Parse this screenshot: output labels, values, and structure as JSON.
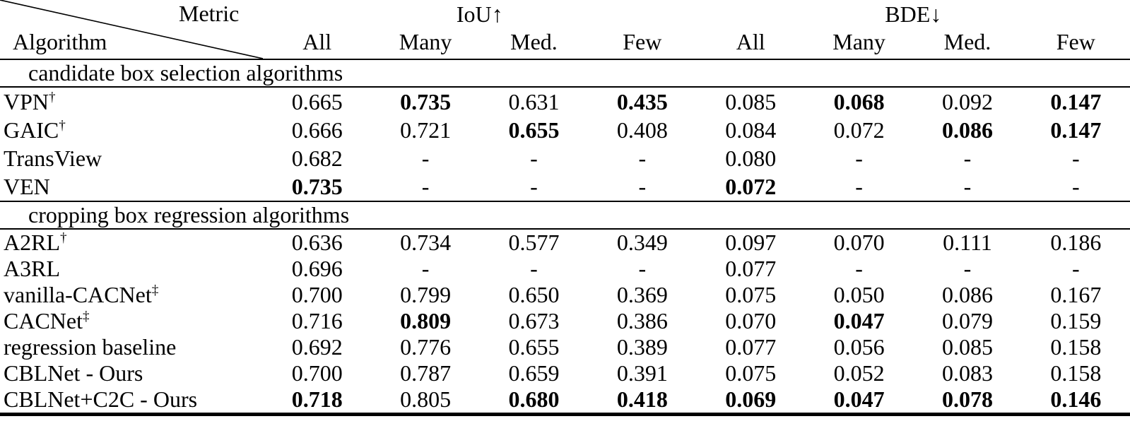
{
  "page": {
    "background": "#ffffff",
    "text_color": "#000000",
    "rule_color": "#000000"
  },
  "table": {
    "header": {
      "corner_top": "Metric",
      "corner_bottom": "Algorithm",
      "groups": [
        "IoU↑",
        "BDE↓"
      ],
      "subcolumns": [
        "All",
        "Many",
        "Med.",
        "Few",
        "All",
        "Many",
        "Med.",
        "Few"
      ]
    },
    "sections": [
      {
        "title": "candidate box selection algorithms",
        "rows": [
          {
            "name": "VPN",
            "sup": "†",
            "cells": [
              {
                "v": "0.665",
                "b": false
              },
              {
                "v": "0.735",
                "b": true
              },
              {
                "v": "0.631",
                "b": false
              },
              {
                "v": "0.435",
                "b": true
              },
              {
                "v": "0.085",
                "b": false
              },
              {
                "v": "0.068",
                "b": true
              },
              {
                "v": "0.092",
                "b": false
              },
              {
                "v": "0.147",
                "b": true
              }
            ]
          },
          {
            "name": "GAIC",
            "sup": "†",
            "cells": [
              {
                "v": "0.666",
                "b": false
              },
              {
                "v": "0.721",
                "b": false
              },
              {
                "v": "0.655",
                "b": true
              },
              {
                "v": "0.408",
                "b": false
              },
              {
                "v": "0.084",
                "b": false
              },
              {
                "v": "0.072",
                "b": false
              },
              {
                "v": "0.086",
                "b": true
              },
              {
                "v": "0.147",
                "b": true
              }
            ]
          },
          {
            "name": "TransView",
            "sup": "",
            "cells": [
              {
                "v": "0.682",
                "b": false
              },
              {
                "v": "-",
                "b": false
              },
              {
                "v": "-",
                "b": false
              },
              {
                "v": "-",
                "b": false
              },
              {
                "v": "0.080",
                "b": false
              },
              {
                "v": "-",
                "b": false
              },
              {
                "v": "-",
                "b": false
              },
              {
                "v": "-",
                "b": false
              }
            ]
          },
          {
            "name": "VEN",
            "sup": "",
            "cells": [
              {
                "v": "0.735",
                "b": true
              },
              {
                "v": "-",
                "b": false
              },
              {
                "v": "-",
                "b": false
              },
              {
                "v": "-",
                "b": false
              },
              {
                "v": "0.072",
                "b": true
              },
              {
                "v": "-",
                "b": false
              },
              {
                "v": "-",
                "b": false
              },
              {
                "v": "-",
                "b": false
              }
            ]
          }
        ]
      },
      {
        "title": "cropping box regression algorithms",
        "rows": [
          {
            "name": "A2RL",
            "sup": "†",
            "cells": [
              {
                "v": "0.636",
                "b": false
              },
              {
                "v": "0.734",
                "b": false
              },
              {
                "v": "0.577",
                "b": false
              },
              {
                "v": "0.349",
                "b": false
              },
              {
                "v": "0.097",
                "b": false
              },
              {
                "v": "0.070",
                "b": false
              },
              {
                "v": "0.111",
                "b": false
              },
              {
                "v": "0.186",
                "b": false
              }
            ]
          },
          {
            "name": "A3RL",
            "sup": "",
            "cells": [
              {
                "v": "0.696",
                "b": false
              },
              {
                "v": "-",
                "b": false
              },
              {
                "v": "-",
                "b": false
              },
              {
                "v": "-",
                "b": false
              },
              {
                "v": "0.077",
                "b": false
              },
              {
                "v": "-",
                "b": false
              },
              {
                "v": "-",
                "b": false
              },
              {
                "v": "-",
                "b": false
              }
            ]
          },
          {
            "name": "vanilla-CACNet",
            "sup": "‡",
            "cells": [
              {
                "v": "0.700",
                "b": false
              },
              {
                "v": "0.799",
                "b": false
              },
              {
                "v": "0.650",
                "b": false
              },
              {
                "v": "0.369",
                "b": false
              },
              {
                "v": "0.075",
                "b": false
              },
              {
                "v": "0.050",
                "b": false
              },
              {
                "v": "0.086",
                "b": false
              },
              {
                "v": "0.167",
                "b": false
              }
            ]
          },
          {
            "name": "CACNet",
            "sup": "‡",
            "cells": [
              {
                "v": "0.716",
                "b": false
              },
              {
                "v": "0.809",
                "b": true
              },
              {
                "v": "0.673",
                "b": false
              },
              {
                "v": "0.386",
                "b": false
              },
              {
                "v": "0.070",
                "b": false
              },
              {
                "v": "0.047",
                "b": true
              },
              {
                "v": "0.079",
                "b": false
              },
              {
                "v": "0.159",
                "b": false
              }
            ]
          },
          {
            "name": "regression baseline",
            "sup": "",
            "cells": [
              {
                "v": "0.692",
                "b": false
              },
              {
                "v": "0.776",
                "b": false
              },
              {
                "v": "0.655",
                "b": false
              },
              {
                "v": "0.389",
                "b": false
              },
              {
                "v": "0.077",
                "b": false
              },
              {
                "v": "0.056",
                "b": false
              },
              {
                "v": "0.085",
                "b": false
              },
              {
                "v": "0.158",
                "b": false
              }
            ]
          },
          {
            "name": "CBLNet - Ours",
            "sup": "",
            "cells": [
              {
                "v": "0.700",
                "b": false
              },
              {
                "v": "0.787",
                "b": false
              },
              {
                "v": "0.659",
                "b": false
              },
              {
                "v": "0.391",
                "b": false
              },
              {
                "v": "0.075",
                "b": false
              },
              {
                "v": "0.052",
                "b": false
              },
              {
                "v": "0.083",
                "b": false
              },
              {
                "v": "0.158",
                "b": false
              }
            ]
          },
          {
            "name": "CBLNet+C2C - Ours",
            "sup": "",
            "cells": [
              {
                "v": "0.718",
                "b": true
              },
              {
                "v": "0.805",
                "b": false
              },
              {
                "v": "0.680",
                "b": true
              },
              {
                "v": "0.418",
                "b": true
              },
              {
                "v": "0.069",
                "b": true
              },
              {
                "v": "0.047",
                "b": true
              },
              {
                "v": "0.078",
                "b": true
              },
              {
                "v": "0.146",
                "b": true
              }
            ]
          }
        ]
      }
    ]
  }
}
